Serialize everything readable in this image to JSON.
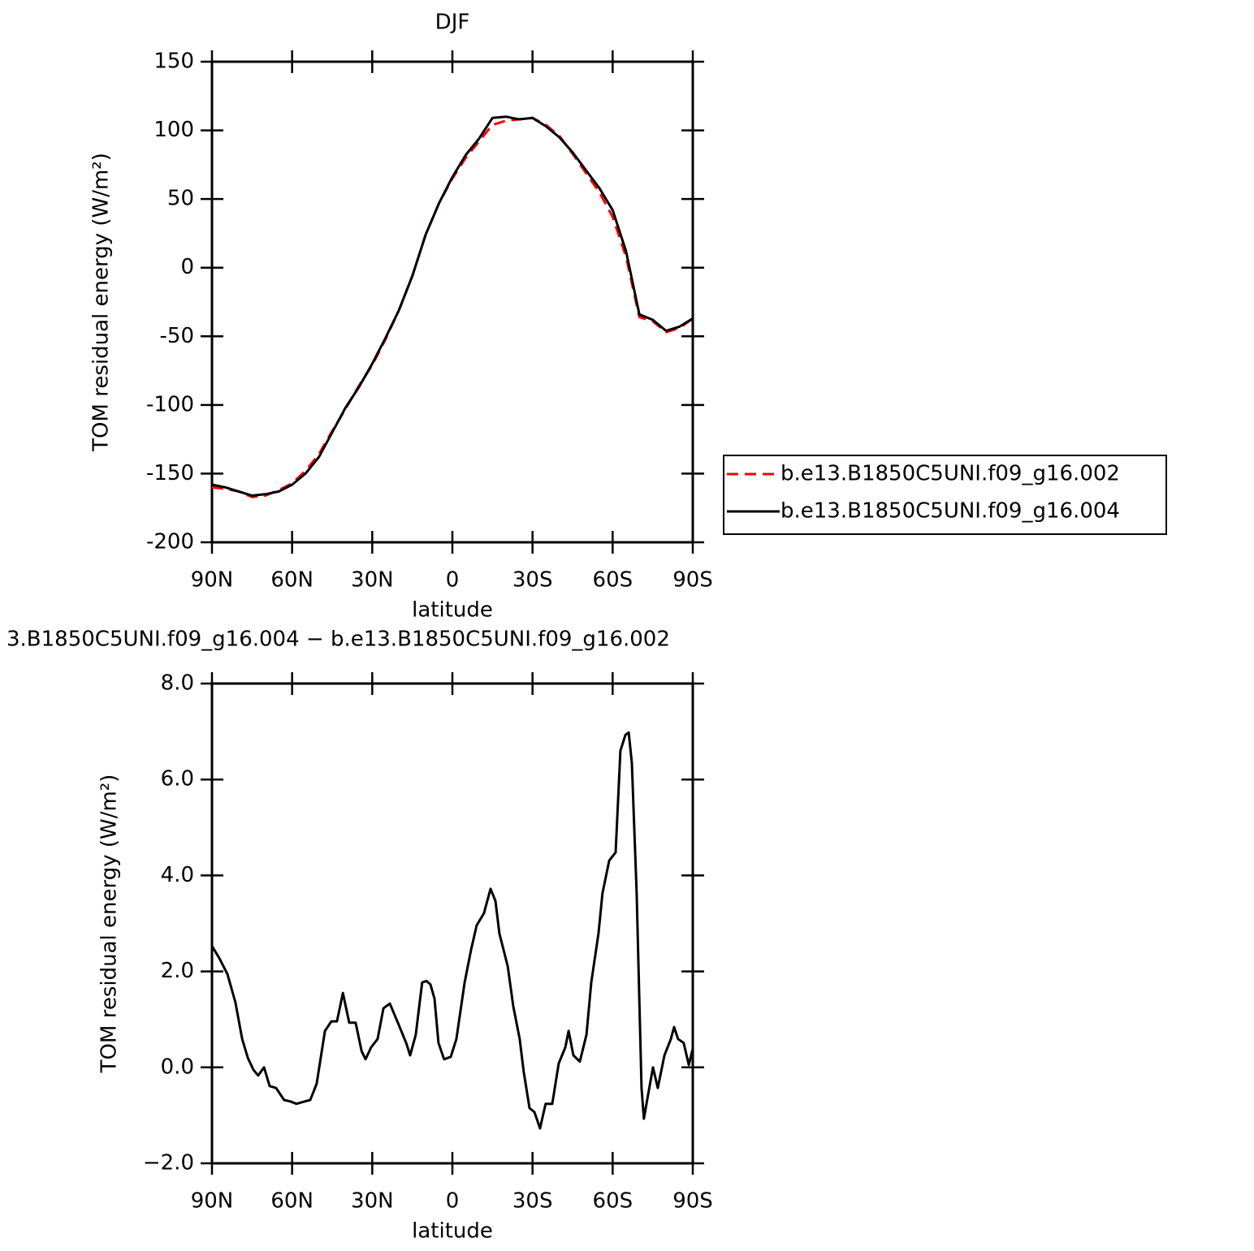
{
  "chart_data": [
    {
      "type": "line",
      "title": "DJF",
      "x_label": "latitude",
      "y_label": "TOM residual energy (W/m²)",
      "x": [
        90,
        85,
        80,
        75,
        70,
        65,
        60,
        55,
        50,
        45,
        40,
        35,
        30,
        25,
        20,
        15,
        10,
        5,
        0,
        -5,
        -10,
        -15,
        -20,
        -25,
        -30,
        -35,
        -40,
        -45,
        -50,
        -55,
        -60,
        -65,
        -70,
        -75,
        -80,
        -85,
        -90
      ],
      "series": [
        {
          "name": "b.e13.B1850C5UNI.f09_g16.002",
          "color": "#ff0000",
          "dash": true,
          "values": [
            -160,
            -161,
            -163,
            -167,
            -166,
            -162,
            -157,
            -148,
            -136,
            -119,
            -103,
            -86,
            -71,
            -52,
            -31,
            -6,
            24,
            47,
            65,
            80,
            92,
            104,
            107,
            108,
            109,
            104,
            96,
            83,
            69,
            55,
            37,
            8,
            -36,
            -39,
            -47,
            -44,
            -37
          ]
        },
        {
          "name": "b.e13.B1850C5UNI.f09_g16.004",
          "color": "#000000",
          "dash": false,
          "values": [
            -158,
            -160,
            -163,
            -166,
            -165,
            -163,
            -158,
            -150,
            -138,
            -120,
            -102,
            -87,
            -70,
            -51,
            -31,
            -6,
            24,
            47,
            66,
            82,
            94,
            109,
            110,
            108,
            109,
            103,
            95,
            84,
            71,
            58,
            42,
            12,
            -34,
            -38,
            -46,
            -43,
            -37
          ]
        }
      ],
      "xlim": [
        90,
        -90
      ],
      "xticks": [
        {
          "value": 90,
          "label": "90N"
        },
        {
          "value": 60,
          "label": "60N"
        },
        {
          "value": 30,
          "label": "30N"
        },
        0,
        {
          "value": -30,
          "label": "30S"
        },
        {
          "value": -60,
          "label": "60S"
        },
        {
          "value": -90,
          "label": "90S"
        }
      ],
      "ylim": [
        -200,
        150
      ],
      "yticks": [
        -200,
        -150,
        -100,
        -50,
        0,
        50,
        100,
        150
      ],
      "legend": "right"
    },
    {
      "type": "line",
      "title": "3.B1850C5UNI.f09_g16.004 − b.e13.B1850C5UNI.f09_g16.002",
      "x_label": "latitude",
      "y_label": "TOM residual energy (W/m²)",
      "x": [
        90,
        87.3,
        84.2,
        81.2,
        78.7,
        76.6,
        74.5,
        72.7,
        70.5,
        68.4,
        66,
        63,
        60.6,
        58.4,
        55.3,
        53.2,
        50.8,
        47.7,
        45.3,
        43.2,
        41,
        38.6,
        36.2,
        34,
        32.5,
        30.4,
        28,
        25.8,
        23.4,
        20.4,
        17.3,
        15.8,
        13.7,
        11.3,
        9.7,
        8.2,
        6.7,
        5.2,
        3.1,
        0.6,
        -1.5,
        -4.6,
        -7,
        -9.1,
        -11.8,
        -14.3,
        -16.1,
        -17.6,
        -20.7,
        -22.8,
        -25.2,
        -26.7,
        -28.9,
        -30.7,
        -32.8,
        -34.9,
        -37.4,
        -39.8,
        -42.3,
        -43.5,
        -45.3,
        -47.7,
        -50.2,
        -52,
        -54.7,
        -56.2,
        -58.7,
        -61.1,
        -62.9,
        -64.8,
        -66,
        -67.2,
        -69,
        -70.8,
        -71.7,
        -72.9,
        -75.1,
        -76.9,
        -79.4,
        -81.8,
        -83,
        -84.5,
        -86.6,
        -88.5,
        -90
      ],
      "series": [
        {
          "color": "#000000",
          "values": [
            2.53,
            2.28,
            1.94,
            1.35,
            0.59,
            0.2,
            -0.05,
            -0.17,
            0,
            -0.39,
            -0.43,
            -0.68,
            -0.71,
            -0.76,
            -0.71,
            -0.68,
            -0.34,
            0.76,
            0.96,
            0.96,
            1.55,
            0.93,
            0.93,
            0.34,
            0.17,
            0.42,
            0.59,
            1.23,
            1.33,
            0.93,
            0.51,
            0.25,
            0.68,
            1.77,
            1.8,
            1.73,
            1.43,
            0.51,
            0.17,
            0.22,
            0.59,
            1.77,
            2.45,
            2.96,
            3.21,
            3.72,
            3.47,
            2.79,
            2.11,
            1.27,
            0.59,
            -0.09,
            -0.85,
            -0.93,
            -1.27,
            -0.76,
            -0.76,
            0.08,
            0.42,
            0.76,
            0.25,
            0.12,
            0.68,
            1.77,
            2.79,
            3.63,
            4.31,
            4.48,
            6.6,
            6.93,
            6.98,
            6.34,
            3.63,
            -0.43,
            -1.07,
            -0.68,
            0,
            -0.43,
            0.25,
            0.59,
            0.84,
            0.59,
            0.51,
            0.05,
            0.39
          ]
        }
      ],
      "xlim": [
        90,
        -90
      ],
      "xticks": [
        {
          "value": 90,
          "label": "90N"
        },
        {
          "value": 60,
          "label": "60N"
        },
        {
          "value": 30,
          "label": "30N"
        },
        0,
        {
          "value": -30,
          "label": "30S"
        },
        {
          "value": -60,
          "label": "60S"
        },
        {
          "value": -90,
          "label": "90S"
        }
      ],
      "ylim": [
        -2,
        8
      ],
      "yticks": [
        {
          "value": -2,
          "label": "−2.0"
        },
        {
          "value": 0,
          "label": "0.0"
        },
        {
          "value": 2,
          "label": "2.0"
        },
        {
          "value": 4,
          "label": "4.0"
        },
        {
          "value": 6,
          "label": "6.0"
        },
        {
          "value": 8,
          "label": "8.0"
        }
      ]
    }
  ]
}
